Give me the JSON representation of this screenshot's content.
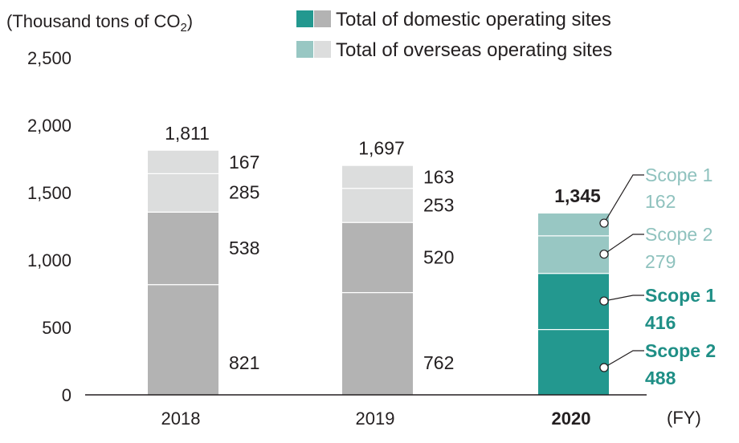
{
  "chart_data": {
    "type": "bar",
    "stacked": true,
    "unit_label": "(Thousand tons of CO",
    "unit_sub": "2",
    "unit_close": ")",
    "x_unit": "(FY)",
    "categories": [
      "2018",
      "2019",
      "2020"
    ],
    "highlight_category": "2020",
    "ylim": [
      0,
      2500
    ],
    "yticks": [
      "0",
      "500",
      "1,000",
      "1,500",
      "2,000",
      "2,500"
    ],
    "ytick_values": [
      0,
      500,
      1000,
      1500,
      2000,
      2500
    ],
    "totals": [
      "1,811",
      "1,697",
      "1,345"
    ],
    "series": [
      {
        "group": "domestic",
        "values": [
          821,
          762,
          488
        ],
        "labels": [
          "821",
          "762",
          "488"
        ],
        "scope_name": "Scope 2"
      },
      {
        "group": "domestic",
        "values": [
          538,
          520,
          416
        ],
        "labels": [
          "538",
          "520",
          "416"
        ],
        "scope_name": "Scope 1"
      },
      {
        "group": "overseas",
        "values": [
          285,
          253,
          279
        ],
        "labels": [
          "285",
          "253",
          "279"
        ],
        "scope_name": "Scope 2"
      },
      {
        "group": "overseas",
        "values": [
          167,
          163,
          162
        ],
        "labels": [
          "167",
          "163",
          "162"
        ],
        "scope_name": "Scope 1"
      }
    ],
    "legend": [
      {
        "label": "Total of domestic operating sites",
        "color_highlight": "#23988f",
        "color_gray": "#b3b3b3"
      },
      {
        "label": "Total of overseas operating sites",
        "color_highlight": "#98c7c3",
        "color_gray": "#dcdddd"
      }
    ],
    "legend_placement": "top-right",
    "colors": {
      "domestic_gray": "#b3b3b3",
      "overseas_gray": "#dcdddd",
      "domestic_highlight": "#23988f",
      "overseas_highlight": "#98c7c3",
      "callout_domestic": "#1f8f86",
      "callout_overseas": "#8fc2be"
    },
    "grid": false
  }
}
